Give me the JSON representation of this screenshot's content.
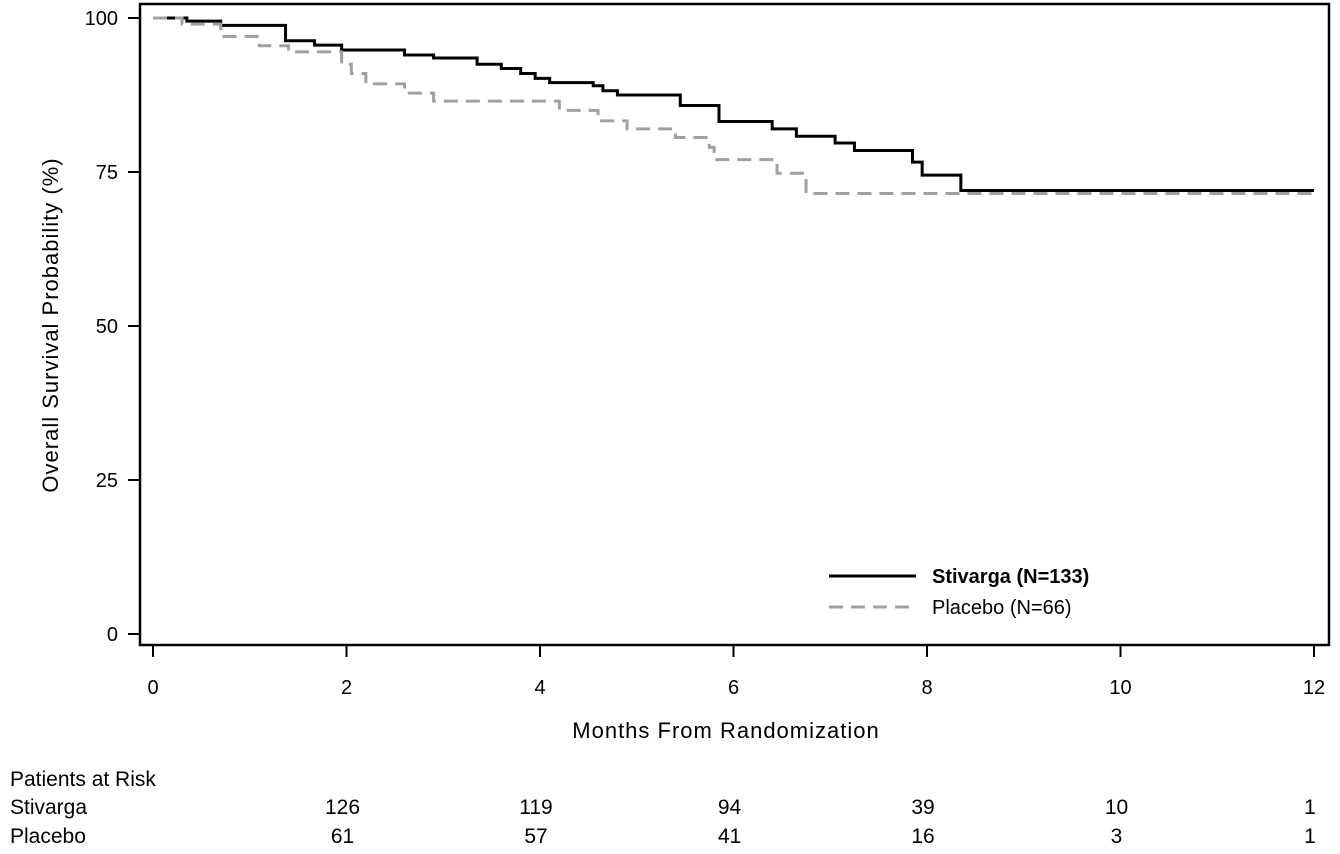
{
  "chart_data": {
    "type": "line",
    "title": "",
    "xlabel": "Months From Randomization",
    "ylabel": "Overall Survival Probability (%)",
    "xlim": [
      0,
      12
    ],
    "ylim": [
      0,
      100
    ],
    "x_ticks": [
      0,
      2,
      4,
      6,
      8,
      10,
      12
    ],
    "y_ticks": [
      0,
      25,
      50,
      75,
      100
    ],
    "grid": false,
    "legend_position": "bottom-right",
    "series": [
      {
        "name": "Stivarga (N=133)",
        "style": "solid",
        "color": "#000000",
        "points": [
          [
            0.0,
            100
          ],
          [
            0.35,
            99.5
          ],
          [
            0.7,
            98.8
          ],
          [
            1.37,
            96.3
          ],
          [
            1.67,
            95.6
          ],
          [
            1.95,
            94.8
          ],
          [
            2.6,
            94.0
          ],
          [
            2.9,
            93.5
          ],
          [
            3.35,
            92.5
          ],
          [
            3.6,
            91.8
          ],
          [
            3.8,
            91.0
          ],
          [
            3.95,
            90.2
          ],
          [
            4.1,
            89.5
          ],
          [
            4.55,
            89.0
          ],
          [
            4.65,
            88.2
          ],
          [
            4.8,
            87.5
          ],
          [
            5.45,
            85.8
          ],
          [
            5.85,
            83.2
          ],
          [
            6.1,
            83.2
          ],
          [
            6.4,
            82.0
          ],
          [
            6.65,
            80.8
          ],
          [
            7.05,
            79.7
          ],
          [
            7.25,
            78.5
          ],
          [
            7.85,
            76.6
          ],
          [
            7.95,
            74.5
          ],
          [
            8.35,
            72.0
          ],
          [
            12.0,
            72.0
          ]
        ]
      },
      {
        "name": "Placebo (N=66)",
        "style": "dashed",
        "color": "#a0a0a0",
        "points": [
          [
            0.0,
            100
          ],
          [
            0.3,
            99.0
          ],
          [
            0.7,
            97.0
          ],
          [
            1.1,
            95.5
          ],
          [
            1.4,
            94.5
          ],
          [
            1.95,
            92.5
          ],
          [
            2.05,
            91.0
          ],
          [
            2.2,
            89.3
          ],
          [
            2.6,
            87.8
          ],
          [
            2.9,
            86.5
          ],
          [
            4.2,
            85.0
          ],
          [
            4.6,
            83.3
          ],
          [
            4.9,
            82.0
          ],
          [
            5.4,
            80.6
          ],
          [
            5.75,
            79.0
          ],
          [
            5.8,
            77.0
          ],
          [
            6.45,
            74.8
          ],
          [
            6.75,
            71.5
          ],
          [
            12.0,
            71.5
          ]
        ]
      }
    ],
    "risk_table": {
      "title": "Patients at Risk",
      "rows": [
        {
          "label": "Stivarga",
          "values": [
            "126",
            "119",
            "94",
            "39",
            "10",
            "1"
          ]
        },
        {
          "label": "Placebo",
          "values": [
            "61",
            "57",
            "41",
            "16",
            "3",
            "1"
          ]
        }
      ]
    },
    "y_tick_labels": [
      "0",
      "25",
      "50",
      "75",
      "100"
    ],
    "x_tick_labels": [
      "0",
      "2",
      "4",
      "6",
      "8",
      "10",
      "12"
    ]
  }
}
